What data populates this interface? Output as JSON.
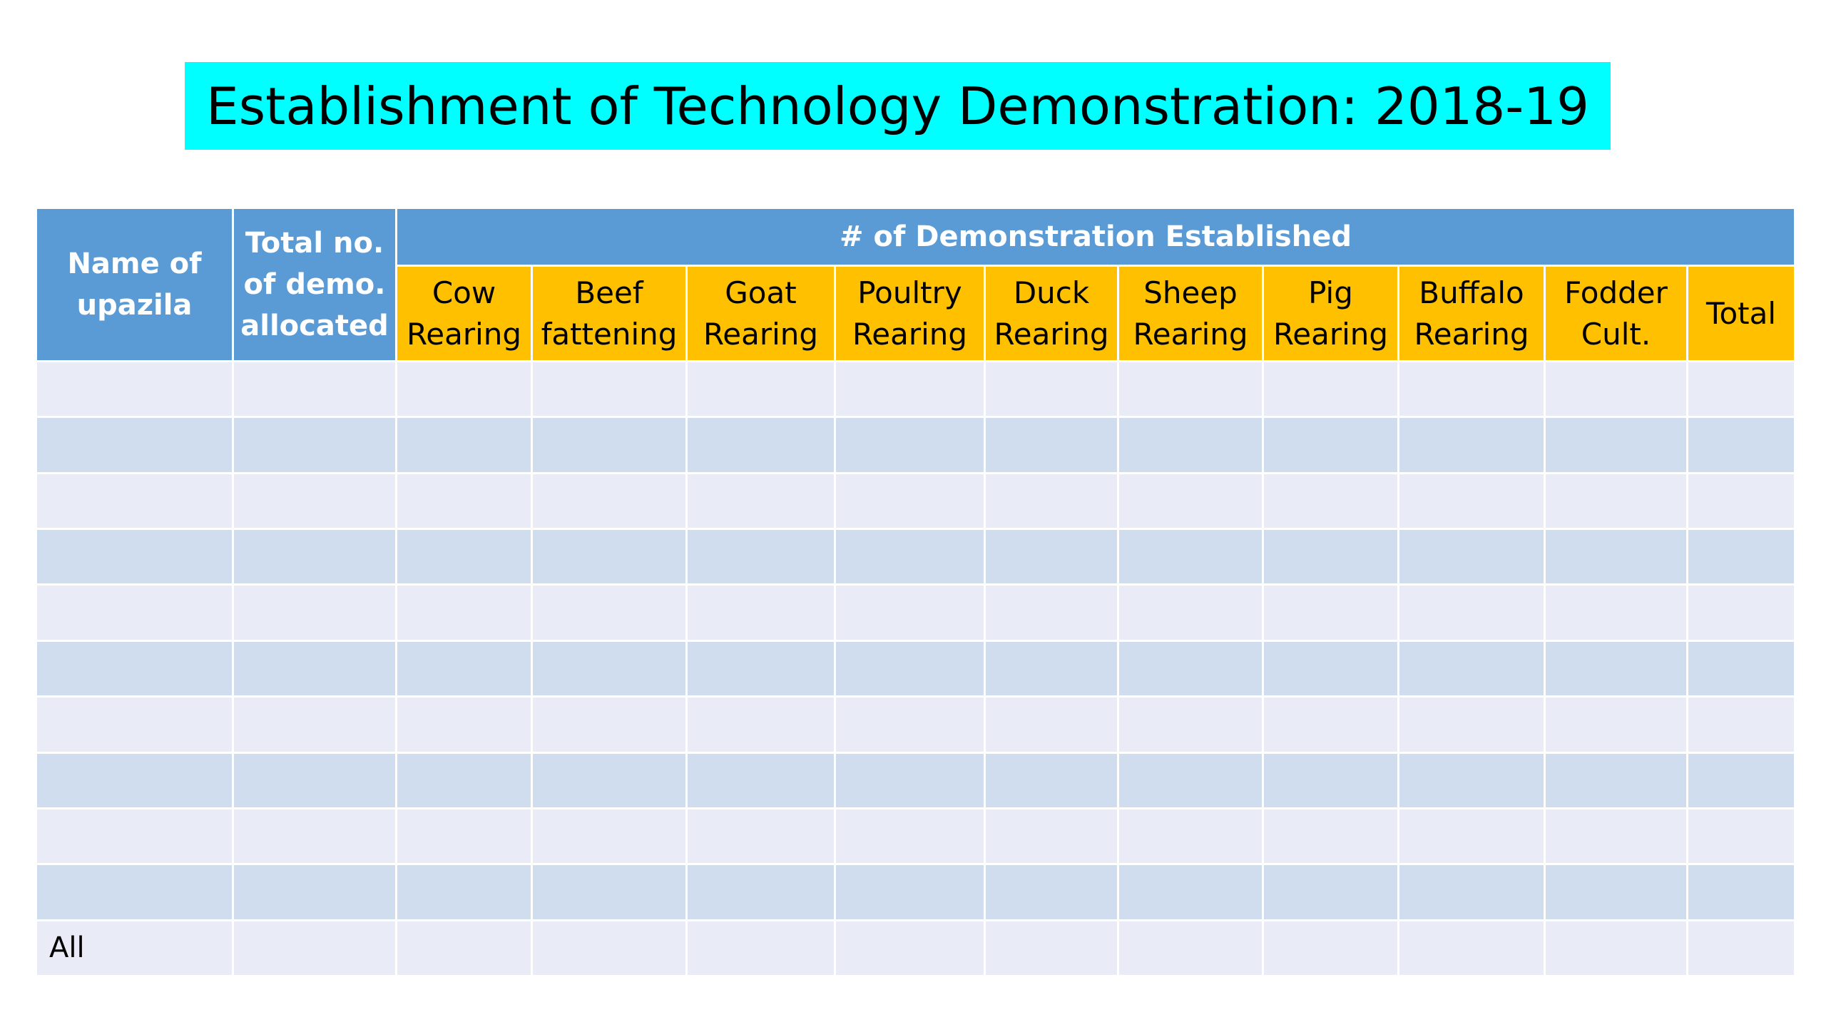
{
  "title": "Establishment of Technology Demonstration: 2018-19",
  "table": {
    "headers": {
      "name_of_upazila": [
        "Name of",
        "upazila"
      ],
      "total_allocated": [
        "Total no.",
        "of demo.",
        "allocated"
      ],
      "group": "# of Demonstration Established",
      "subcolumns": [
        [
          "Cow",
          "Rearing"
        ],
        [
          "Beef",
          "fattening"
        ],
        [
          "Goat",
          "Rearing"
        ],
        [
          "Poultry",
          "Rearing"
        ],
        [
          "Duck",
          "Rearing"
        ],
        [
          "Sheep",
          "Rearing"
        ],
        [
          "Pig",
          "Rearing"
        ],
        [
          "Buffalo",
          "Rearing"
        ],
        [
          "Fodder",
          "Cult."
        ],
        [
          "Total"
        ]
      ]
    },
    "empty_rows": 10,
    "footer_label": "All"
  },
  "colors": {
    "title_band": "#00ffff",
    "header_blue": "#5b9bd5",
    "header_gold": "#ffc000",
    "row_light": "#e9ecf6",
    "row_dark": "#d0ddee"
  }
}
